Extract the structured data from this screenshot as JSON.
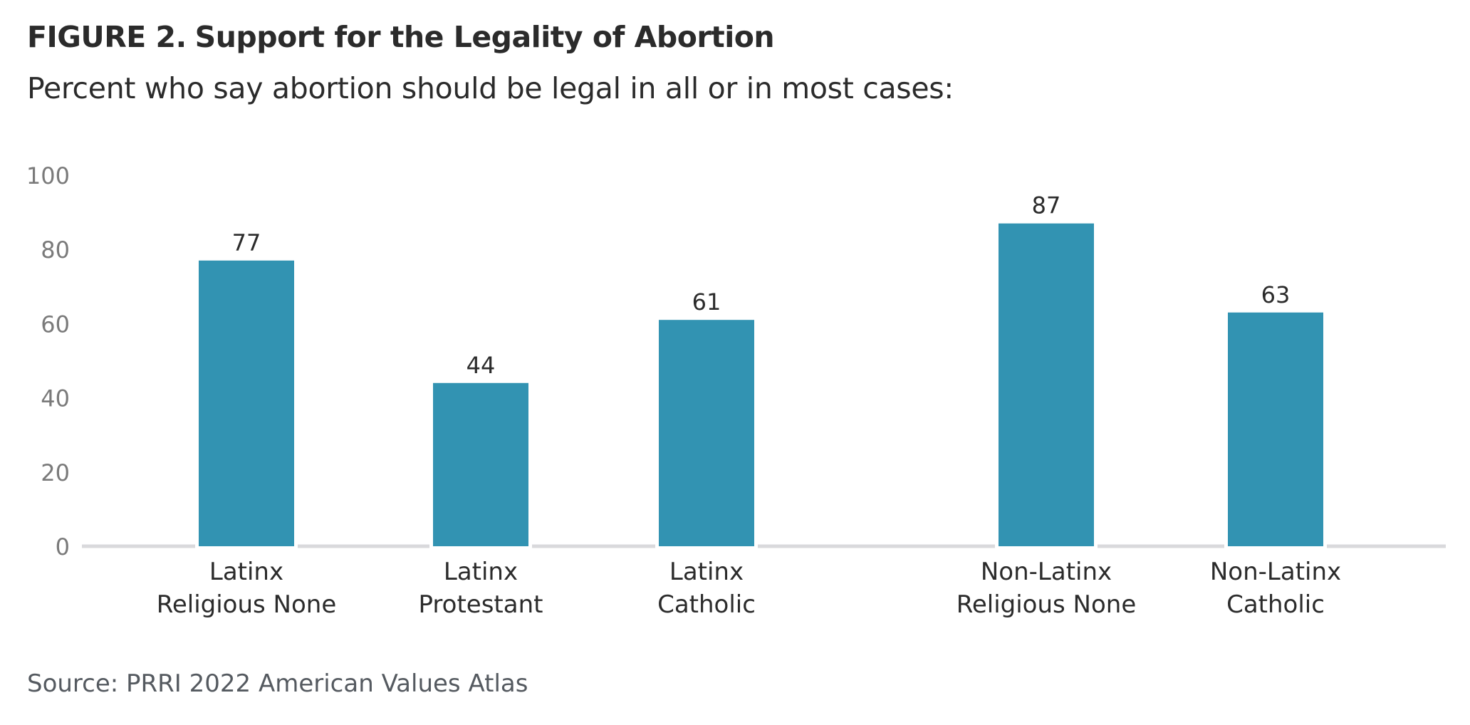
{
  "figure": {
    "label": "FIGURE 2.",
    "title": "Support for the Legality of Abortion",
    "subtitle": "Percent who say abortion should be legal in all or in most cases:",
    "source": "Source: PRRI 2022 American Values Atlas"
  },
  "chart_data": {
    "type": "bar",
    "categories": [
      [
        "Latinx",
        "Religious None"
      ],
      [
        "Latinx",
        "Protestant"
      ],
      [
        "Latinx",
        "Catholic"
      ],
      [
        "Non-Latinx",
        "Religious None"
      ],
      [
        "Non-Latinx",
        "Catholic"
      ]
    ],
    "values": [
      77,
      44,
      61,
      87,
      63
    ],
    "data_labels": [
      "77",
      "44",
      "61",
      "87",
      "63"
    ],
    "yticks": [
      0,
      20,
      40,
      60,
      80,
      100
    ],
    "ylim": [
      0,
      100
    ],
    "xlabel": "",
    "ylabel": "",
    "grid": false,
    "legend": "none",
    "colors": {
      "bar": "#3293b2",
      "baseline": "#d9d9dc",
      "tick_label": "#7a7a7a",
      "data_label": "#2b2b2b",
      "category_label": "#2b2b2b"
    }
  }
}
